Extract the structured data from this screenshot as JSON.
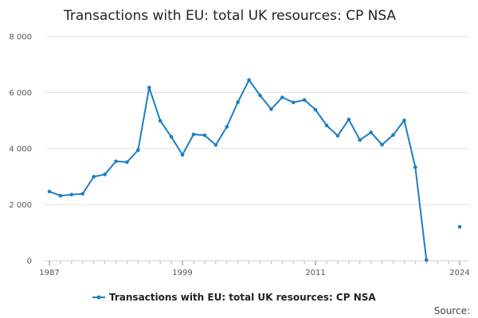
{
  "chart_data": {
    "type": "line",
    "title": "Transactions with EU: total UK resources: CP NSA",
    "xlabel": "",
    "ylabel": "",
    "source_label": "Source:",
    "x_ticks": [
      "1987",
      "1999",
      "2011",
      "2024"
    ],
    "y_ticks": [
      "0",
      "2 000",
      "4 000",
      "6 000",
      "8 000"
    ],
    "ylim": [
      0,
      8000
    ],
    "xlim": [
      1987,
      2024
    ],
    "grid": true,
    "legend_position": "bottom",
    "series": [
      {
        "name": "Transactions with EU: total UK resources: CP NSA",
        "color": "#1b7fc4",
        "points": [
          {
            "x": 1987,
            "y": 2470
          },
          {
            "x": 1988,
            "y": 2320
          },
          {
            "x": 1989,
            "y": 2360
          },
          {
            "x": 1990,
            "y": 2390
          },
          {
            "x": 1991,
            "y": 3000
          },
          {
            "x": 1992,
            "y": 3080
          },
          {
            "x": 1993,
            "y": 3550
          },
          {
            "x": 1994,
            "y": 3520
          },
          {
            "x": 1995,
            "y": 3950
          },
          {
            "x": 1996,
            "y": 6180
          },
          {
            "x": 1997,
            "y": 4990
          },
          {
            "x": 1998,
            "y": 4420
          },
          {
            "x": 1999,
            "y": 3780
          },
          {
            "x": 2000,
            "y": 4510
          },
          {
            "x": 2001,
            "y": 4480
          },
          {
            "x": 2002,
            "y": 4130
          },
          {
            "x": 2003,
            "y": 4780
          },
          {
            "x": 2004,
            "y": 5660
          },
          {
            "x": 2005,
            "y": 6450
          },
          {
            "x": 2006,
            "y": 5900
          },
          {
            "x": 2007,
            "y": 5410
          },
          {
            "x": 2008,
            "y": 5830
          },
          {
            "x": 2009,
            "y": 5650
          },
          {
            "x": 2010,
            "y": 5740
          },
          {
            "x": 2011,
            "y": 5390
          },
          {
            "x": 2012,
            "y": 4830
          },
          {
            "x": 2013,
            "y": 4460
          },
          {
            "x": 2014,
            "y": 5040
          },
          {
            "x": 2015,
            "y": 4310
          },
          {
            "x": 2016,
            "y": 4580
          },
          {
            "x": 2017,
            "y": 4140
          },
          {
            "x": 2018,
            "y": 4490
          },
          {
            "x": 2019,
            "y": 5010
          },
          {
            "x": 2020,
            "y": 3340
          },
          {
            "x": 2021,
            "y": 30
          },
          {
            "x": 2024,
            "y": 1210,
            "isolated": true
          }
        ]
      }
    ]
  }
}
